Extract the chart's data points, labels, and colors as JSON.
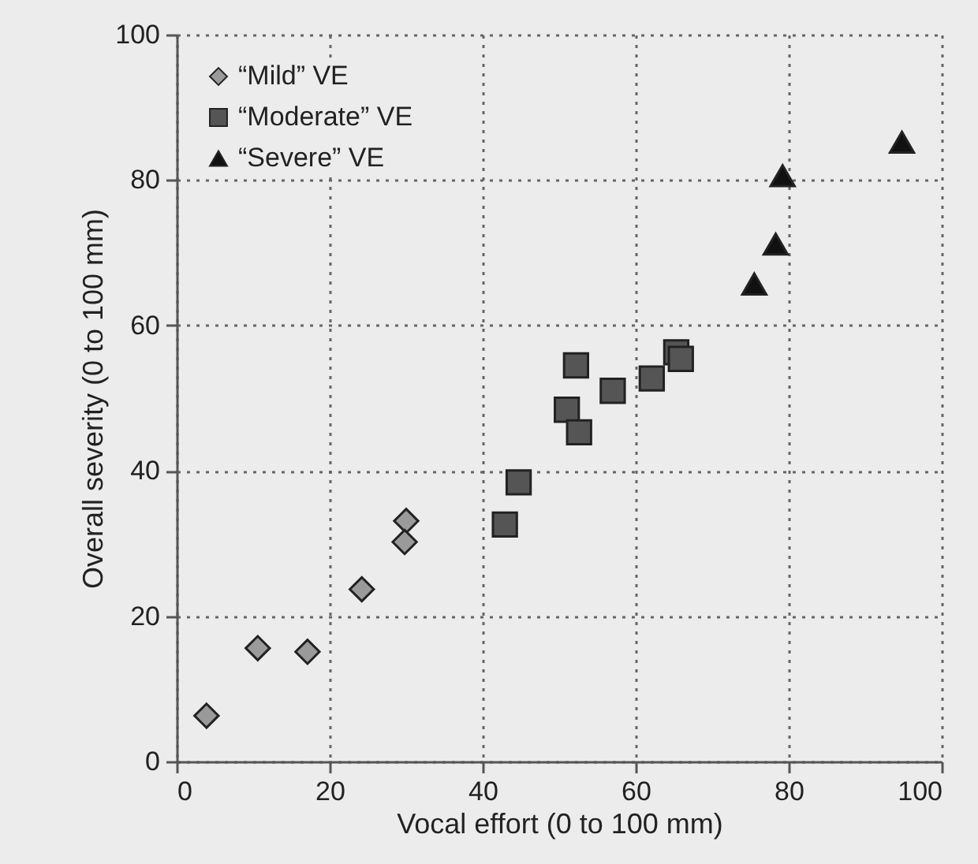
{
  "chart_data": {
    "type": "scatter",
    "xlabel": "Vocal effort (0 to 100 mm)",
    "ylabel": "Overall severity (0 to 100 mm)",
    "xlim": [
      0,
      100
    ],
    "ylim": [
      0,
      100
    ],
    "xticks": [
      0,
      20,
      40,
      60,
      80,
      100
    ],
    "yticks": [
      0,
      20,
      40,
      60,
      80,
      100
    ],
    "grid": true,
    "legend": "top left",
    "series": [
      {
        "name": "“Mild” VE",
        "color": "#9a9a9a",
        "marker": "diamond",
        "x": [
          3.9,
          10.6,
          17.1,
          24.2,
          30.0,
          29.8
        ],
        "values": [
          6.3,
          15.6,
          15.1,
          23.7,
          33.1,
          30.2
        ]
      },
      {
        "name": "“Moderate” VE",
        "color": "#555555",
        "marker": "square",
        "x": [
          42.9,
          44.7,
          52.2,
          51.0,
          52.6,
          57.0,
          62.1,
          65.3,
          65.9
        ],
        "values": [
          32.6,
          38.4,
          54.5,
          48.4,
          45.3,
          51.0,
          52.7,
          56.3,
          55.4
        ]
      },
      {
        "name": "“Severe” VE",
        "color": "#111111",
        "marker": "triangle",
        "x": [
          75.5,
          78.3,
          79.2,
          94.8
        ],
        "values": [
          65.7,
          71.2,
          80.6,
          85.2
        ]
      }
    ]
  }
}
